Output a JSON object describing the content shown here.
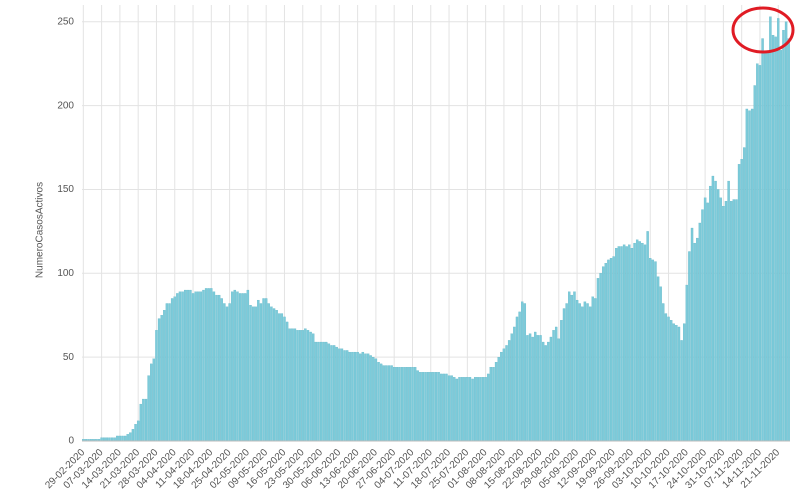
{
  "chart_data": {
    "type": "bar",
    "y_label": "NumeroCasosActivos",
    "color": "#7ccbda",
    "ylim": [
      0,
      260
    ],
    "yticks": [
      0,
      50,
      100,
      150,
      200,
      250
    ],
    "grid": true,
    "categories": [
      "29-02-2020",
      null,
      null,
      null,
      null,
      null,
      null,
      "07-03-2020",
      null,
      null,
      null,
      null,
      null,
      null,
      "14-03-2020",
      null,
      null,
      null,
      null,
      null,
      null,
      "21-03-2020",
      null,
      null,
      null,
      null,
      null,
      null,
      "28-03-2020",
      null,
      null,
      null,
      null,
      null,
      null,
      "04-04-2020",
      null,
      null,
      null,
      null,
      null,
      null,
      "11-04-2020",
      null,
      null,
      null,
      null,
      null,
      null,
      "18-04-2020",
      null,
      null,
      null,
      null,
      null,
      null,
      "25-04-2020",
      null,
      null,
      null,
      null,
      null,
      null,
      "02-05-2020",
      null,
      null,
      null,
      null,
      null,
      null,
      "09-05-2020",
      null,
      null,
      null,
      null,
      null,
      null,
      "16-05-2020",
      null,
      null,
      null,
      null,
      null,
      null,
      "23-05-2020",
      null,
      null,
      null,
      null,
      null,
      null,
      "30-05-2020",
      null,
      null,
      null,
      null,
      null,
      null,
      "06-06-2020",
      null,
      null,
      null,
      null,
      null,
      null,
      "13-06-2020",
      null,
      null,
      null,
      null,
      null,
      null,
      "20-06-2020",
      null,
      null,
      null,
      null,
      null,
      null,
      "27-06-2020",
      null,
      null,
      null,
      null,
      null,
      null,
      "04-07-2020",
      null,
      null,
      null,
      null,
      null,
      null,
      "11-07-2020",
      null,
      null,
      null,
      null,
      null,
      null,
      "18-07-2020",
      null,
      null,
      null,
      null,
      null,
      null,
      "25-07-2020",
      null,
      null,
      null,
      null,
      null,
      null,
      "01-08-2020",
      null,
      null,
      null,
      null,
      null,
      null,
      "08-08-2020",
      null,
      null,
      null,
      null,
      null,
      null,
      "15-08-2020",
      null,
      null,
      null,
      null,
      null,
      null,
      "22-08-2020",
      null,
      null,
      null,
      null,
      null,
      null,
      "29-08-2020",
      null,
      null,
      null,
      null,
      null,
      null,
      "05-09-2020",
      null,
      null,
      null,
      null,
      null,
      null,
      "12-09-2020",
      null,
      null,
      null,
      null,
      null,
      null,
      "19-09-2020",
      null,
      null,
      null,
      null,
      null,
      null,
      "26-09-2020",
      null,
      null,
      null,
      null,
      null,
      null,
      "03-10-2020",
      null,
      null,
      null,
      null,
      null,
      null,
      "10-10-2020",
      null,
      null,
      null,
      null,
      null,
      null,
      "17-10-2020",
      null,
      null,
      null,
      null,
      null,
      null,
      "24-10-2020",
      null,
      null,
      null,
      null,
      null,
      null,
      "31-10-2020",
      null,
      null,
      null,
      null,
      null,
      null,
      "07-11-2020",
      null,
      null,
      null,
      null,
      null,
      null,
      "14-11-2020",
      null,
      null,
      null,
      null,
      null,
      null,
      "21-11-2020",
      null,
      null,
      null,
      null
    ],
    "values": [
      1,
      1,
      1,
      1,
      1,
      1,
      1,
      2,
      2,
      2,
      2,
      2,
      2,
      3,
      3,
      3,
      3,
      4,
      5,
      7,
      10,
      12,
      22,
      25,
      25,
      39,
      46,
      49,
      66,
      73,
      75,
      78,
      82,
      82,
      85,
      86,
      88,
      89,
      89,
      90,
      90,
      90,
      88,
      89,
      89,
      89,
      90,
      91,
      91,
      91,
      89,
      87,
      87,
      85,
      82,
      80,
      82,
      89,
      90,
      89,
      88,
      88,
      88,
      90,
      81,
      80,
      80,
      84,
      82,
      85,
      85,
      82,
      80,
      79,
      78,
      76,
      76,
      74,
      71,
      67,
      67,
      67,
      66,
      66,
      66,
      67,
      66,
      65,
      64,
      59,
      59,
      59,
      59,
      59,
      58,
      57,
      57,
      56,
      55,
      55,
      54,
      54,
      53,
      53,
      53,
      53,
      52,
      53,
      52,
      52,
      51,
      50,
      49,
      47,
      46,
      45,
      45,
      45,
      45,
      44,
      44,
      44,
      44,
      44,
      44,
      44,
      44,
      44,
      42,
      41,
      41,
      41,
      41,
      41,
      41,
      41,
      41,
      40,
      40,
      40,
      39,
      39,
      38,
      37,
      38,
      38,
      38,
      38,
      38,
      37,
      38,
      38,
      38,
      38,
      38,
      40,
      44,
      44,
      47,
      50,
      53,
      55,
      57,
      60,
      64,
      68,
      74,
      77,
      83,
      82,
      63,
      64,
      62,
      65,
      63,
      63,
      59,
      57,
      59,
      62,
      66,
      68,
      61,
      72,
      79,
      82,
      89,
      87,
      89,
      84,
      82,
      80,
      83,
      82,
      80,
      86,
      85,
      97,
      100,
      104,
      106,
      108,
      109,
      110,
      115,
      116,
      116,
      117,
      116,
      117,
      115,
      118,
      120,
      119,
      118,
      117,
      125,
      109,
      108,
      107,
      98,
      92,
      82,
      76,
      74,
      72,
      70,
      69,
      68,
      60,
      70,
      93,
      113,
      127,
      118,
      121,
      130,
      138,
      145,
      142,
      152,
      158,
      155,
      150,
      145,
      140,
      143,
      155,
      143,
      144,
      144,
      165,
      168,
      175,
      198,
      197,
      198,
      212,
      225,
      224,
      240,
      232,
      232,
      253,
      242,
      241,
      252,
      233,
      245,
      250,
      240
    ]
  }
}
